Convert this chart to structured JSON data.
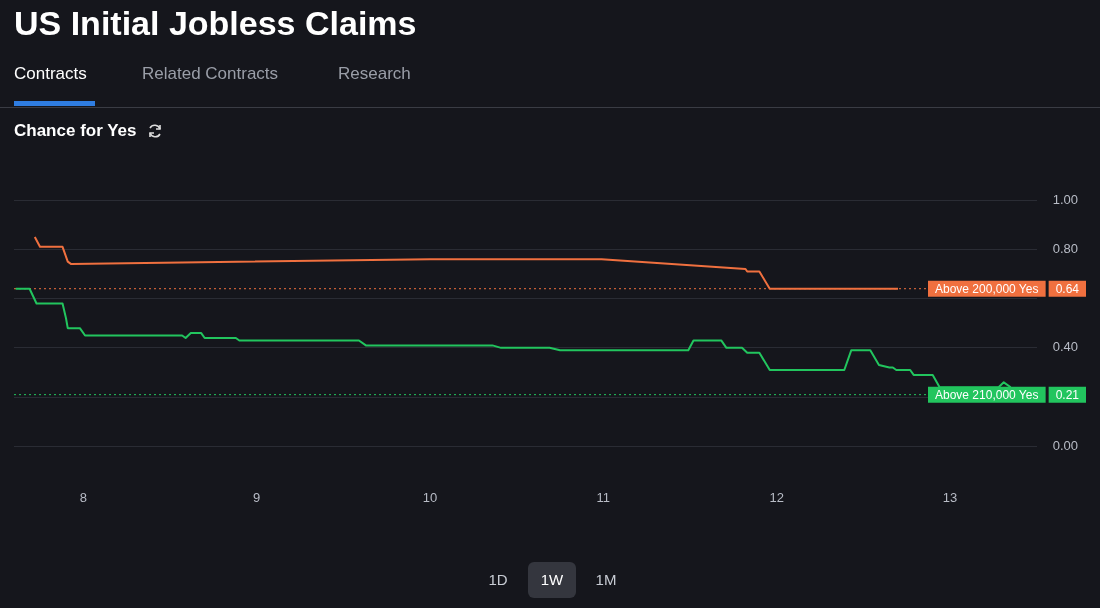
{
  "chart_data": {
    "type": "line",
    "title": "US Initial Jobless Claims",
    "subtitle": "Chance for Yes",
    "annotations": [
      "Contracts",
      "Related Contracts",
      "Research",
      "1D",
      "1W",
      "1M",
      "0.64",
      "0.21"
    ],
    "series": [
      {
        "color": "#f0703f",
        "x": [
          7.72,
          7.75,
          7.88,
          7.91,
          7.93,
          10.0,
          10.99,
          11.82,
          11.83,
          11.9,
          11.96,
          12.7
        ],
        "values": [
          0.85,
          0.81,
          0.81,
          0.75,
          0.74,
          0.76,
          0.76,
          0.72,
          0.71,
          0.71,
          0.64,
          0.64
        ]
      },
      {
        "color": "#22c55e",
        "x": [
          7.61,
          7.69,
          7.73,
          7.88,
          7.9,
          7.91,
          7.98,
          8.01,
          8.57,
          8.59,
          8.62,
          8.68,
          8.7,
          8.88,
          8.9,
          9.59,
          9.63,
          10.36,
          10.41,
          10.69,
          10.75,
          11.49,
          11.52,
          11.68,
          11.71,
          11.8,
          11.83,
          11.9,
          11.96,
          12.39,
          12.43,
          12.54,
          12.59,
          12.65,
          12.67,
          12.69,
          12.77,
          12.79,
          12.9,
          12.94,
          13.28,
          13.31,
          13.35
        ],
        "values": [
          0.64,
          0.64,
          0.58,
          0.58,
          0.52,
          0.48,
          0.48,
          0.45,
          0.45,
          0.44,
          0.46,
          0.46,
          0.44,
          0.44,
          0.43,
          0.43,
          0.41,
          0.41,
          0.4,
          0.4,
          0.39,
          0.39,
          0.43,
          0.43,
          0.4,
          0.4,
          0.38,
          0.38,
          0.31,
          0.31,
          0.39,
          0.39,
          0.33,
          0.32,
          0.32,
          0.31,
          0.31,
          0.29,
          0.29,
          0.24,
          0.24,
          0.26,
          0.24
        ]
      }
    ],
    "ref_lines": [
      {
        "axis": "y",
        "value": 0.64,
        "label": "Above 200,000 Yes",
        "color": "#f0703f",
        "line_style": "dotted"
      },
      {
        "axis": "y",
        "value": 0.21,
        "label": "Above 210,000 Yes",
        "color": "#22c55e",
        "line_style": "dotted"
      }
    ],
    "xlim": [
      7.6,
      13.5
    ],
    "xticks": [
      8,
      9,
      10,
      11,
      12,
      13
    ],
    "ylim": [
      0,
      1
    ],
    "yticks": [
      {
        "value": 0,
        "label": "0.00"
      },
      {
        "value": 0.2,
        "label": null
      },
      {
        "value": 0.4,
        "label": "0.40"
      },
      {
        "value": 0.6,
        "label": null
      },
      {
        "value": 0.8,
        "label": "0.80"
      },
      {
        "value": 1,
        "label": "1.00"
      }
    ],
    "grid": "y",
    "legend": false,
    "marker": "none",
    "line_style": "solid"
  }
}
